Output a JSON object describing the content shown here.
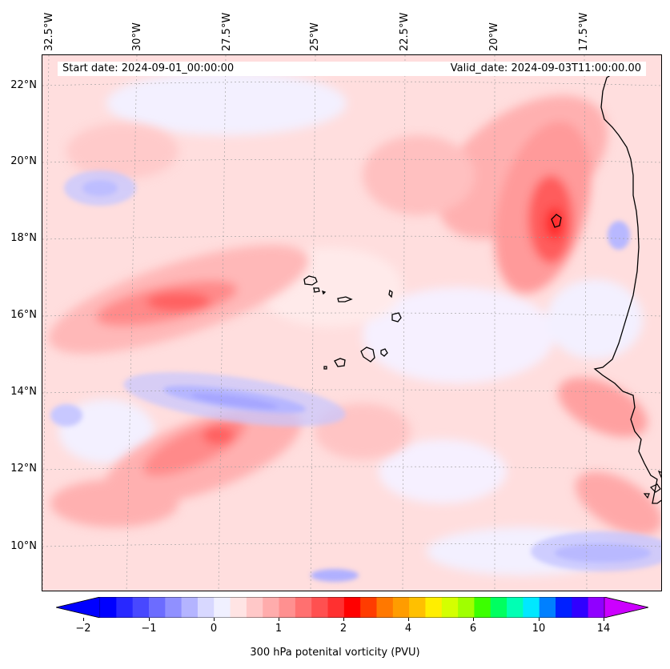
{
  "map": {
    "longitude_labels": [
      "32.5°W",
      "30°W",
      "27.5°W",
      "25°W",
      "22.5°W",
      "20°W",
      "17.5°W"
    ],
    "latitude_labels": [
      "22°N",
      "20°N",
      "18°N",
      "16°N",
      "14°N",
      "12°N",
      "10°N"
    ],
    "start_date": "Start date: 2024-09-01_00:00:00",
    "valid_date": "Valid_date: 2024-09-03T11:00:00.00",
    "field": "300 hPa potential vorticity",
    "features": [
      "Cape Verde islands",
      "West African coastline"
    ]
  },
  "colorbar": {
    "label": "300 hPa potenital vorticity (PVU)",
    "ticks": [
      "−2",
      "−1",
      "0",
      "1",
      "2",
      "4",
      "6",
      "10",
      "14"
    ],
    "colors": [
      "#0000ff",
      "#2828ff",
      "#4848ff",
      "#6c6cff",
      "#9090ff",
      "#b4b4ff",
      "#d8d8ff",
      "#f0f0ff",
      "#ffe4e4",
      "#ffc8c8",
      "#ffacac",
      "#ff9090",
      "#ff7070",
      "#ff5050",
      "#ff3030",
      "#ff0000",
      "#ff3c00",
      "#ff7800",
      "#ff9c00",
      "#ffc000",
      "#ffee00",
      "#d4ff00",
      "#a0ff00",
      "#3cff00",
      "#00ff60",
      "#00ffb4",
      "#00e8ff",
      "#0080ff",
      "#0020ff",
      "#3000ff",
      "#9000ff"
    ],
    "extend_low_color": "#0000ff",
    "extend_high_color": "#cc00ff"
  }
}
